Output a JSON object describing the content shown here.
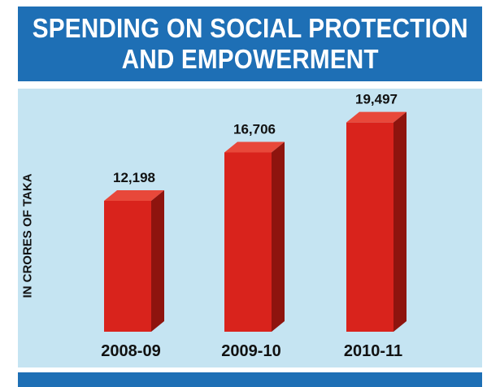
{
  "chart_data": {
    "type": "bar",
    "title_lines": [
      "SPENDING ON SOCIAL PROTECTION",
      "AND EMPOWERMENT"
    ],
    "ylabel": "IN CRORES OF TAKA",
    "xlabel": "",
    "categories": [
      "2008-09",
      "2009-10",
      "2010-11"
    ],
    "values": [
      12198,
      16706,
      19497
    ],
    "value_labels": [
      "12,198",
      "16,706",
      "19,497"
    ],
    "ylim": [
      0,
      22000
    ],
    "grid": false,
    "legend": "none"
  },
  "colors": {
    "title_band": "#1e6fb5",
    "plot_background": "#c5e4f2",
    "bar_front": "#d9231c",
    "bar_top": "#e8483a",
    "bar_side": "#8e140e",
    "text": "#111111"
  }
}
